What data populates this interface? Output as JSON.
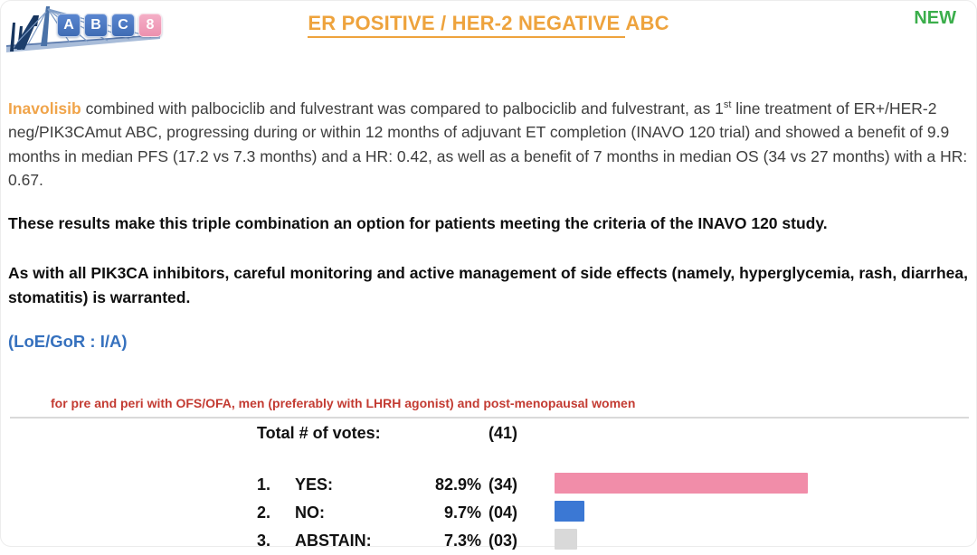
{
  "header": {
    "logo": {
      "letters": [
        "A",
        "B",
        "C"
      ],
      "number": "8"
    },
    "title": {
      "underlined": "ER POSITIVE / HER-2 NEGATIVE",
      "rest": "ABC"
    },
    "new_badge": "NEW"
  },
  "body": {
    "paragraph1": {
      "lead": "Inavolisib",
      "before_sup": " combined with palbociclib and fulvestrant was compared to palbociclib and fulvestrant, as 1",
      "sup": "st",
      "after_sup": " line treatment of ER+/HER-2 neg/PIK3CAmut ABC, progressing during or within 12 months of adjuvant ET completion (INAVO 120 trial) and showed a benefit of 9.9 months in median PFS (17.2 vs 7.3 months) and a HR: 0.42, as well as a benefit of 7 months in median OS (34 vs 27 months) with a HR: 0.67."
    },
    "paragraph2": "These results make this triple combination an option for patients meeting the criteria of the INAVO 120 study.",
    "paragraph3": "As with all PIK3CA inhibitors, careful monitoring and active management of side effects (namely, hyperglycemia, rash, diarrhea, stomatitis) is warranted.",
    "loe_gor": "(LoE/GoR : I/A)"
  },
  "vote_section": {
    "scope_note": "for pre and peri with OFS/OFA, men (preferably with LHRH agonist) and post-menopausal women",
    "total_label": "Total # of votes:",
    "total_count": "(41)",
    "rows": [
      {
        "num": "1.",
        "label": "YES:",
        "pct": "82.9%",
        "count": "(34)",
        "value": 82.9,
        "color": "#F18DA9"
      },
      {
        "num": "2.",
        "label": "NO:",
        "pct": "9.7%",
        "count": "(04)",
        "value": 9.7,
        "color": "#3B78D4"
      },
      {
        "num": "3.",
        "label": "ABSTAIN:",
        "pct": "7.3%",
        "count": "(03)",
        "value": 7.3,
        "color": "#D9D9D9"
      }
    ]
  },
  "colors": {
    "title_orange": "#EEA33D",
    "new_green": "#3BAE4B",
    "loe_blue": "#3671BE",
    "note_red": "#C33B32",
    "yes_bar": "#F18DA9",
    "no_bar": "#3B78D4",
    "abstain_bar": "#D9D9D9"
  },
  "chart_data": {
    "type": "bar",
    "title": "Total # of votes: (41)",
    "categories": [
      "YES",
      "NO",
      "ABSTAIN"
    ],
    "values": [
      82.9,
      9.7,
      7.3
    ],
    "counts": [
      34,
      4,
      3
    ],
    "total_votes": 41,
    "unit": "%",
    "orientation": "horizontal",
    "xlim": [
      0,
      100
    ],
    "colors": [
      "#F18DA9",
      "#3B78D4",
      "#D9D9D9"
    ],
    "legend": "none",
    "grid": false
  }
}
